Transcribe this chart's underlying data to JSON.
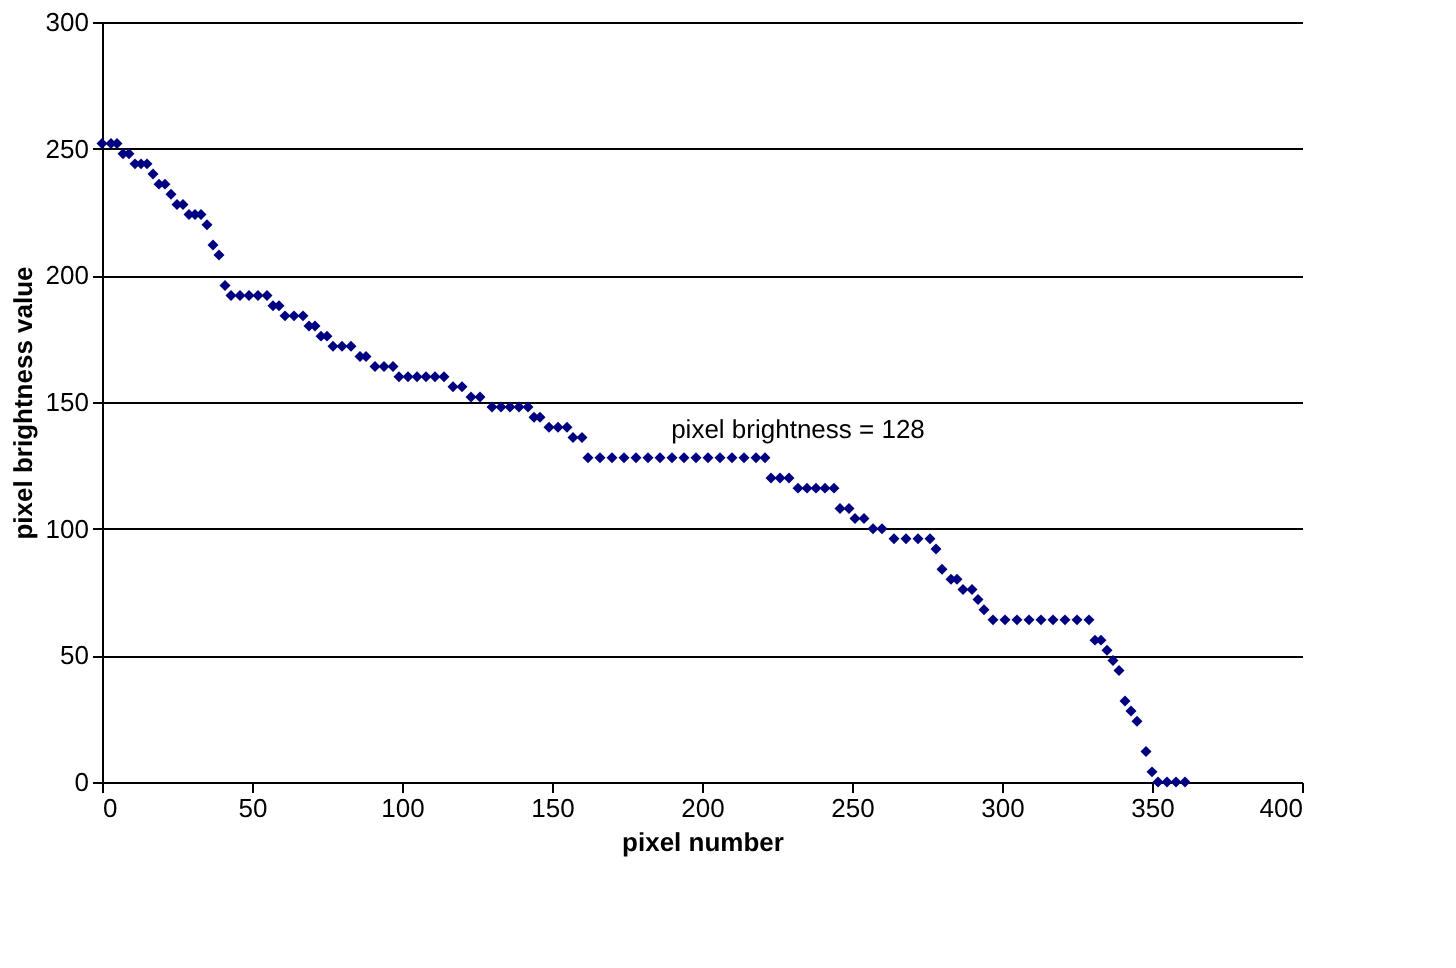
{
  "chart_data": {
    "type": "scatter",
    "xlabel": "pixel number",
    "ylabel": "pixel brightness value",
    "x": [
      0,
      3,
      5,
      7,
      9,
      11,
      13,
      15,
      17,
      19,
      21,
      23,
      25,
      27,
      29,
      31,
      33,
      35,
      37,
      39,
      41,
      43,
      46,
      49,
      52,
      55,
      57,
      59,
      61,
      64,
      67,
      69,
      71,
      73,
      75,
      77,
      80,
      83,
      86,
      88,
      91,
      94,
      97,
      99,
      102,
      105,
      108,
      111,
      114,
      117,
      120,
      123,
      126,
      130,
      133,
      136,
      139,
      142,
      144,
      146,
      149,
      152,
      155,
      157,
      160,
      162,
      166,
      170,
      174,
      178,
      182,
      186,
      190,
      194,
      198,
      202,
      206,
      210,
      214,
      218,
      221,
      223,
      226,
      229,
      232,
      235,
      238,
      241,
      244,
      246,
      249,
      251,
      254,
      257,
      260,
      264,
      268,
      272,
      276,
      278,
      280,
      283,
      285,
      287,
      290,
      292,
      294,
      297,
      301,
      305,
      309,
      313,
      317,
      321,
      325,
      329,
      331,
      333,
      335,
      337,
      339,
      341,
      343,
      345,
      348,
      350,
      352,
      355,
      358,
      361
    ],
    "series": [
      {
        "color": "#000080",
        "values": [
          252,
          252,
          252,
          248,
          248,
          244,
          244,
          244,
          240,
          236,
          236,
          232,
          228,
          228,
          224,
          224,
          224,
          220,
          212,
          208,
          196,
          192,
          192,
          192,
          192,
          192,
          188,
          188,
          184,
          184,
          184,
          180,
          180,
          176,
          176,
          172,
          172,
          172,
          168,
          168,
          164,
          164,
          164,
          160,
          160,
          160,
          160,
          160,
          160,
          156,
          156,
          152,
          152,
          148,
          148,
          148,
          148,
          148,
          144,
          144,
          140,
          140,
          140,
          136,
          136,
          128,
          128,
          128,
          128,
          128,
          128,
          128,
          128,
          128,
          128,
          128,
          128,
          128,
          128,
          128,
          128,
          120,
          120,
          120,
          116,
          116,
          116,
          116,
          116,
          108,
          108,
          104,
          104,
          100,
          100,
          96,
          96,
          96,
          96,
          92,
          84,
          80,
          80,
          76,
          76,
          72,
          68,
          64,
          64,
          64,
          64,
          64,
          64,
          64,
          64,
          64,
          56,
          56,
          52,
          48,
          44,
          32,
          28,
          24,
          12,
          4,
          0,
          0,
          0,
          0
        ]
      }
    ],
    "xlim": [
      0,
      400
    ],
    "xticks": [
      0,
      50,
      100,
      150,
      200,
      250,
      300,
      350,
      400
    ],
    "ylim": [
      0,
      300
    ],
    "yticks": [
      0,
      50,
      100,
      150,
      200,
      250,
      300
    ],
    "grid": "y",
    "marker": "diamond",
    "legend": false,
    "annotations": [
      "pixel brightness = 128"
    ]
  }
}
